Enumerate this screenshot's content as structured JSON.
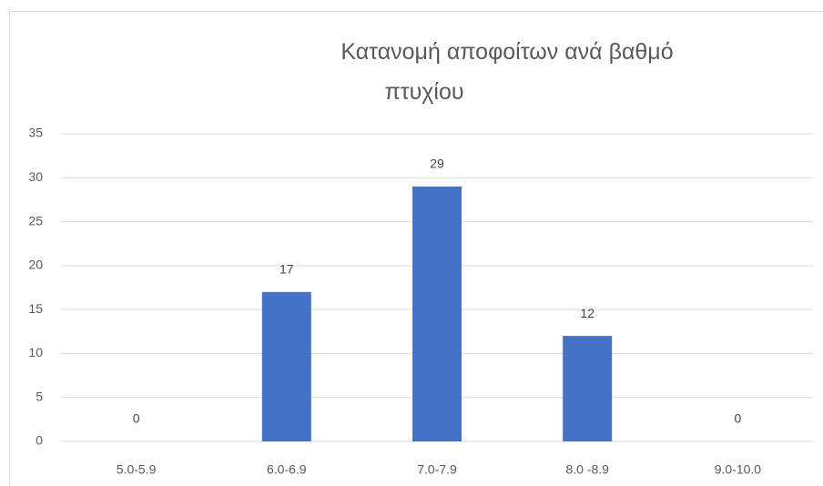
{
  "chart_data": {
    "type": "bar",
    "title": "Κατανομή αποφοίτων ανά βαθμό\nπτυχίου",
    "categories": [
      "5.0-5.9",
      "6.0-6.9",
      "7.0-7.9",
      "8.0 -8.9",
      "9.0-10.0"
    ],
    "values": [
      0,
      17,
      29,
      12,
      0
    ],
    "color": "#4472c4",
    "ylim": [
      0,
      35
    ],
    "yticks": [
      0,
      5,
      10,
      15,
      20,
      25,
      30,
      35
    ],
    "grid": true,
    "data_labels": true
  }
}
